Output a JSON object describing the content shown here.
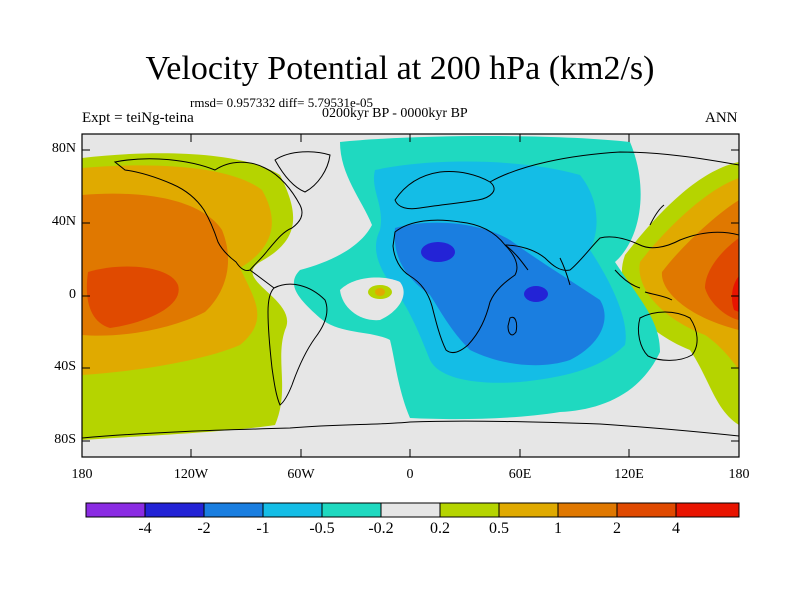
{
  "title": "Velocity Potential at 200 hPa (km2/s)",
  "stats": "rmsd= 0.957332 diff= 5.79531e-05",
  "left_label": "Expt = teiNg-teina",
  "center_label": "0200kyr BP - 0000kyr BP",
  "right_label": "ANN",
  "lat_ticks": [
    "80N",
    "40N",
    "0",
    "40S",
    "80S"
  ],
  "lon_ticks": [
    "180",
    "120W",
    "60W",
    "0",
    "60E",
    "120E",
    "180"
  ],
  "colorbar": {
    "labels": [
      "-4",
      "-2",
      "-1",
      "-0.5",
      "-0.2",
      "0.2",
      "0.5",
      "1",
      "2",
      "4"
    ],
    "colors": [
      "#8a2be2",
      "#2323d6",
      "#1a7ee0",
      "#14bde6",
      "#1fd9c0",
      "#e6e6e6",
      "#b5d400",
      "#e0aa00",
      "#e07800",
      "#e04a00",
      "#e81400"
    ]
  }
}
